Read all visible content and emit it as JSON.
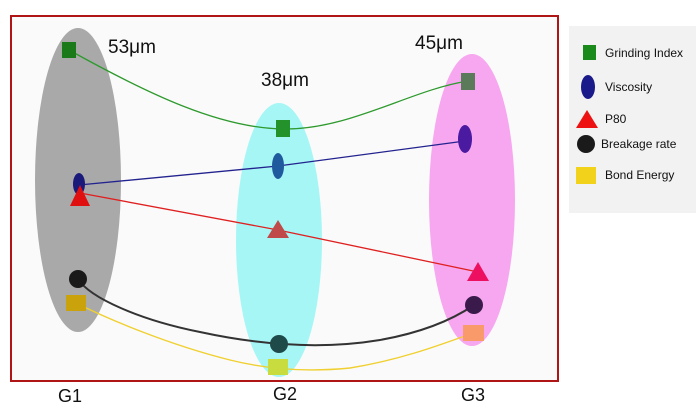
{
  "groups": [
    {
      "label": "G1",
      "size": "53μm",
      "color": "#a9a9a9"
    },
    {
      "label": "G2",
      "size": "38μm",
      "color": "#a6f6f6"
    },
    {
      "label": "G3",
      "size": "45μm",
      "color": "#f7a6f0"
    }
  ],
  "legend": [
    {
      "label": "Grinding Index",
      "marker": "square",
      "color": "#1a8a1a"
    },
    {
      "label": "Viscosity",
      "marker": "ellipse",
      "color": "#1a1a8a"
    },
    {
      "label": "P80",
      "marker": "triangle",
      "color": "#ee1111"
    },
    {
      "label": "Breakage rate",
      "marker": "circle",
      "color": "#1a1a1a"
    },
    {
      "label": "Bond Energy",
      "marker": "rect",
      "color": "#f2d21a"
    }
  ],
  "colors": {
    "frame": "#b01515",
    "plot_bg": "#fafafa",
    "legend_bg": "#f2f2f2"
  }
}
